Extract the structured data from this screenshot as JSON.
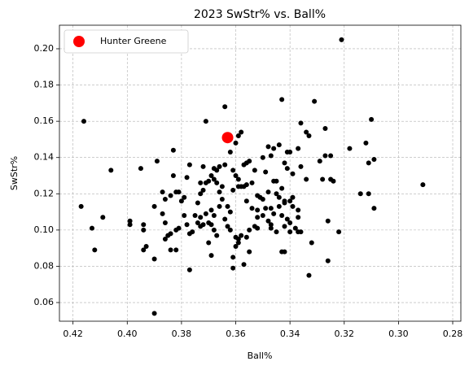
{
  "chart_data": {
    "type": "scatter",
    "title": "2023 SwStr% vs. Ball%",
    "x_label": "Ball%",
    "y_label": "SwStr%",
    "xlim": [
      0.425,
      0.277
    ],
    "ylim": [
      0.0497,
      0.213
    ],
    "xticks": [
      0.42,
      {
        "value": 0.4,
        "label": "0.40"
      },
      0.38,
      0.36,
      0.34,
      0.32,
      {
        "value": 0.3,
        "label": "0.30"
      },
      0.28
    ],
    "yticks": [
      0.06,
      0.08,
      {
        "value": 0.1,
        "label": "0.10"
      },
      0.12,
      0.14,
      0.16,
      0.18,
      {
        "value": 0.2,
        "label": "0.20"
      }
    ],
    "grid": true,
    "legend": "upper left",
    "series": [
      {
        "color": "#000000",
        "x": [
          0.417,
          0.416,
          0.413,
          0.412,
          0.409,
          0.406,
          0.321,
          0.291,
          0.31,
          0.309,
          0.309,
          0.311,
          0.312,
          0.311,
          0.314,
          0.318,
          0.39,
          0.333,
          0.326,
          0.322,
          0.324,
          0.325,
          0.325,
          0.327,
          0.327,
          0.328,
          0.329,
          0.326,
          0.332,
          0.334,
          0.333,
          0.334,
          0.336,
          0.331,
          0.343,
          0.337,
          0.341,
          0.34,
          0.344,
          0.346,
          0.348,
          0.347,
          0.35,
          0.349,
          0.345,
          0.346,
          0.342,
          0.341,
          0.339,
          0.336,
          0.358,
          0.359,
          0.36,
          0.362,
          0.364,
          0.371,
          0.357,
          0.356,
          0.355,
          0.353,
          0.358,
          0.36,
          0.361,
          0.359,
          0.356,
          0.354,
          0.352,
          0.351,
          0.35,
          0.348,
          0.345,
          0.344,
          0.343,
          0.342,
          0.34,
          0.339,
          0.337,
          0.337,
          0.34,
          0.341,
          0.343,
          0.344,
          0.346,
          0.347,
          0.349,
          0.348,
          0.347,
          0.35,
          0.352,
          0.353,
          0.355,
          0.356,
          0.357,
          0.361,
          0.361,
          0.359,
          0.358,
          0.36,
          0.362,
          0.363,
          0.364,
          0.362,
          0.363,
          0.365,
          0.366,
          0.365,
          0.367,
          0.368,
          0.369,
          0.367,
          0.368,
          0.366,
          0.364,
          0.372,
          0.37,
          0.371,
          0.372,
          0.373,
          0.374,
          0.375,
          0.374,
          0.373,
          0.372,
          0.37,
          0.369,
          0.368,
          0.367,
          0.368,
          0.366,
          0.369,
          0.371,
          0.373,
          0.37,
          0.369,
          0.377,
          0.376,
          0.377,
          0.378,
          0.379,
          0.38,
          0.381,
          0.379,
          0.381,
          0.382,
          0.384,
          0.384,
          0.382,
          0.386,
          0.385,
          0.386,
          0.387,
          0.386,
          0.387,
          0.383,
          0.383,
          0.382,
          0.384,
          0.378,
          0.377,
          0.389,
          0.39,
          0.395,
          0.394,
          0.394,
          0.393,
          0.394,
          0.39,
          0.399,
          0.399,
          0.355,
          0.352,
          0.347,
          0.343,
          0.342,
          0.338,
          0.337,
          0.336,
          0.34,
          0.342,
          0.345,
          0.352,
          0.354,
          0.356,
          0.342,
          0.339,
          0.36,
          0.359,
          0.361,
          0.359,
          0.357,
          0.373
        ],
        "values": [
          0.113,
          0.16,
          0.101,
          0.089,
          0.107,
          0.133,
          0.205,
          0.125,
          0.161,
          0.139,
          0.112,
          0.137,
          0.148,
          0.12,
          0.12,
          0.145,
          0.054,
          0.075,
          0.083,
          0.099,
          0.127,
          0.128,
          0.141,
          0.141,
          0.156,
          0.128,
          0.138,
          0.105,
          0.093,
          0.128,
          0.152,
          0.154,
          0.159,
          0.171,
          0.172,
          0.145,
          0.143,
          0.143,
          0.147,
          0.145,
          0.146,
          0.141,
          0.14,
          0.132,
          0.127,
          0.127,
          0.137,
          0.134,
          0.131,
          0.135,
          0.154,
          0.152,
          0.148,
          0.143,
          0.168,
          0.16,
          0.136,
          0.137,
          0.138,
          0.133,
          0.124,
          0.13,
          0.133,
          0.128,
          0.125,
          0.126,
          0.119,
          0.118,
          0.117,
          0.121,
          0.12,
          0.118,
          0.123,
          0.115,
          0.116,
          0.113,
          0.111,
          0.107,
          0.104,
          0.106,
          0.108,
          0.113,
          0.109,
          0.112,
          0.112,
          0.105,
          0.103,
          0.108,
          0.107,
          0.102,
          0.1,
          0.096,
          0.081,
          0.079,
          0.085,
          0.093,
          0.097,
          0.096,
          0.1,
          0.102,
          0.106,
          0.11,
          0.113,
          0.117,
          0.121,
          0.124,
          0.126,
          0.128,
          0.13,
          0.133,
          0.134,
          0.135,
          0.136,
          0.135,
          0.127,
          0.126,
          0.122,
          0.12,
          0.115,
          0.108,
          0.104,
          0.102,
          0.103,
          0.104,
          0.103,
          0.1,
          0.097,
          0.108,
          0.113,
          0.111,
          0.109,
          0.107,
          0.093,
          0.086,
          0.078,
          0.099,
          0.098,
          0.103,
          0.108,
          0.116,
          0.121,
          0.118,
          0.101,
          0.1,
          0.098,
          0.089,
          0.089,
          0.095,
          0.097,
          0.104,
          0.109,
          0.117,
          0.121,
          0.144,
          0.13,
          0.121,
          0.119,
          0.129,
          0.136,
          0.138,
          0.113,
          0.134,
          0.103,
          0.1,
          0.091,
          0.089,
          0.084,
          0.105,
          0.103,
          0.088,
          0.101,
          0.101,
          0.088,
          0.088,
          0.101,
          0.099,
          0.099,
          0.099,
          0.102,
          0.099,
          0.111,
          0.112,
          0.116,
          0.116,
          0.118,
          0.091,
          0.095,
          0.122,
          0.124,
          0.124,
          0.126
        ]
      },
      {
        "name": "Hunter Greene",
        "color": "#ff0000",
        "x": [
          0.363
        ],
        "values": [
          0.151
        ]
      }
    ]
  }
}
